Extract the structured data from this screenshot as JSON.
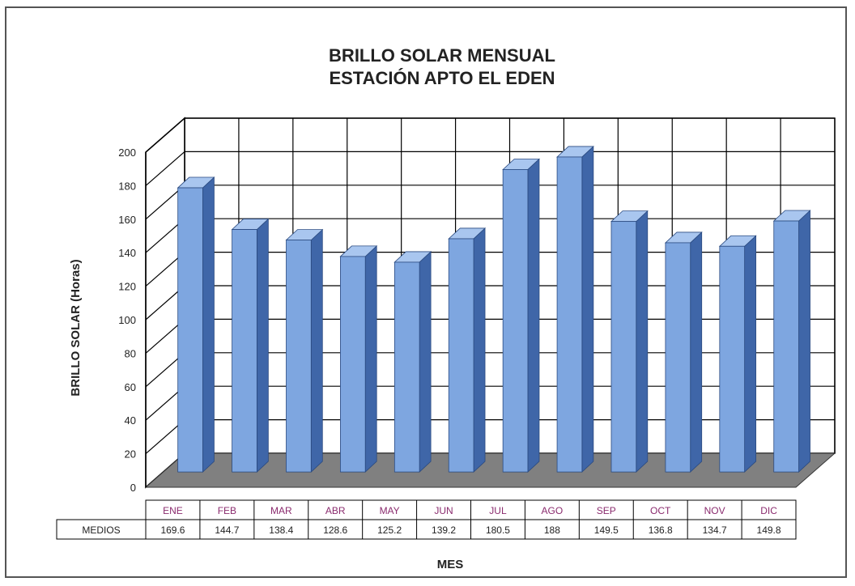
{
  "chart_data": {
    "type": "bar",
    "title": "BRILLO SOLAR MENSUAL",
    "subtitle": "ESTACIÓN APTO EL EDEN",
    "ylabel": "BRILLO SOLAR   (Horas)",
    "xlabel": "MES",
    "ylim": [
      0,
      200
    ],
    "yticks": [
      "0",
      "20",
      "40",
      "60",
      "80",
      "100",
      "120",
      "140",
      "160",
      "180",
      "200"
    ],
    "categories": [
      "ENE",
      "FEB",
      "MAR",
      "ABR",
      "MAY",
      "JUN",
      "JUL",
      "AGO",
      "SEP",
      "OCT",
      "NOV",
      "DIC"
    ],
    "series": [
      {
        "name": "MEDIOS",
        "values": [
          169.6,
          144.7,
          138.4,
          128.6,
          125.2,
          139.2,
          180.5,
          188,
          149.5,
          136.8,
          134.7,
          149.8
        ],
        "labels": [
          "169.6",
          "144.7",
          "138.4",
          "128.6",
          "125.2",
          "139.2",
          "180.5",
          "188",
          "149.5",
          "136.8",
          "134.7",
          "149.8"
        ]
      }
    ],
    "grid": true,
    "colors": {
      "bar_front": "#7ea6e0",
      "bar_side": "#3f66a8",
      "bar_top": "#a9c6ef",
      "floor": "#808080",
      "month_text": "#8a2b6e",
      "grid": "#000000"
    }
  }
}
